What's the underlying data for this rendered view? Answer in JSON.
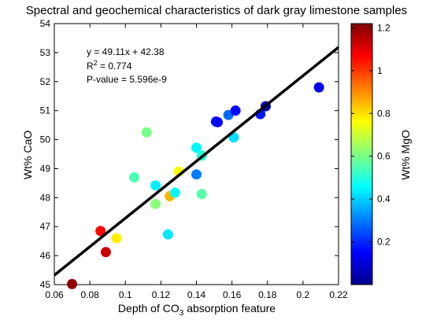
{
  "chart_data": {
    "type": "scatter",
    "title": "Spectral and geochemical characteristics of dark gray limestone samples",
    "xlabel_prefix": "Depth of CO",
    "xlabel_sub": "3",
    "xlabel_suffix": " absorption feature",
    "ylabel": "Wt% CaO",
    "xlim": [
      0.06,
      0.22
    ],
    "ylim": [
      45,
      54
    ],
    "x_ticks": [
      "0.06",
      "0.08",
      "0.1",
      "0.12",
      "0.14",
      "0.16",
      "0.18",
      "0.2",
      "0.22"
    ],
    "y_ticks": [
      "45",
      "46",
      "47",
      "48",
      "49",
      "50",
      "51",
      "52",
      "53",
      "54"
    ],
    "fit": {
      "slope": 49.11,
      "intercept": 42.38
    },
    "annotations": {
      "equation": "y = 49.11x + 42.38",
      "r2_label": "R",
      "r2_sup": "2",
      "r2_value": " = 0.774",
      "pvalue": "P-value = 5.596e-9"
    },
    "colorbar": {
      "label": "Wt% MgO",
      "min": 0,
      "max": 1.22,
      "colormap": "jet",
      "ticks": [
        "0.2",
        "0.4",
        "0.6",
        "0.8",
        "1",
        "1.2"
      ]
    },
    "points": [
      {
        "x": 0.07,
        "y": 45.02,
        "c": 1.2
      },
      {
        "x": 0.086,
        "y": 46.85,
        "c": 1.06
      },
      {
        "x": 0.089,
        "y": 46.12,
        "c": 1.13
      },
      {
        "x": 0.095,
        "y": 46.6,
        "c": 0.78
      },
      {
        "x": 0.105,
        "y": 48.7,
        "c": 0.55
      },
      {
        "x": 0.112,
        "y": 50.25,
        "c": 0.6
      },
      {
        "x": 0.117,
        "y": 47.78,
        "c": 0.62
      },
      {
        "x": 0.117,
        "y": 48.42,
        "c": 0.44
      },
      {
        "x": 0.124,
        "y": 46.73,
        "c": 0.43
      },
      {
        "x": 0.125,
        "y": 48.05,
        "c": 0.85
      },
      {
        "x": 0.128,
        "y": 48.17,
        "c": 0.45
      },
      {
        "x": 0.13,
        "y": 48.9,
        "c": 0.76
      },
      {
        "x": 0.14,
        "y": 48.8,
        "c": 0.3
      },
      {
        "x": 0.14,
        "y": 49.72,
        "c": 0.45
      },
      {
        "x": 0.143,
        "y": 49.45,
        "c": 0.5
      },
      {
        "x": 0.143,
        "y": 48.12,
        "c": 0.56
      },
      {
        "x": 0.151,
        "y": 50.62,
        "c": 0.17
      },
      {
        "x": 0.152,
        "y": 50.6,
        "c": 0.15
      },
      {
        "x": 0.158,
        "y": 50.85,
        "c": 0.28
      },
      {
        "x": 0.161,
        "y": 50.08,
        "c": 0.42
      },
      {
        "x": 0.162,
        "y": 51.0,
        "c": 0.16
      },
      {
        "x": 0.176,
        "y": 50.88,
        "c": 0.18
      },
      {
        "x": 0.179,
        "y": 51.15,
        "c": 0.05
      },
      {
        "x": 0.209,
        "y": 51.8,
        "c": 0.12
      }
    ]
  }
}
